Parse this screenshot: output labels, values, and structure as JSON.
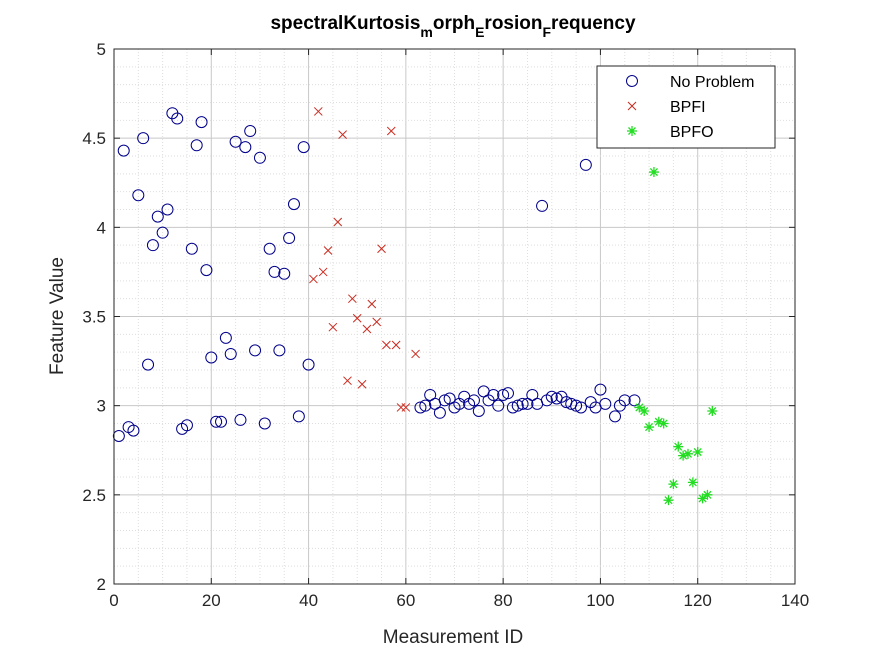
{
  "chart_data": {
    "type": "scatter",
    "title": {
      "main1": "spectralKurtosis",
      "sub1": "m",
      "main2": "orph",
      "sub2": "E",
      "main3": "rosion",
      "sub3": "F",
      "main4": "requency"
    },
    "xlabel": "Measurement ID",
    "ylabel": "Feature Value",
    "xlim": [
      0,
      140
    ],
    "ylim": [
      2,
      5
    ],
    "xticks": [
      0,
      20,
      40,
      60,
      80,
      100,
      120,
      140
    ],
    "yticks": [
      2,
      2.5,
      3,
      3.5,
      4,
      4.5,
      5
    ],
    "xtick_labels": [
      "0",
      "20",
      "40",
      "60",
      "80",
      "100",
      "120",
      "140"
    ],
    "ytick_labels": [
      "2",
      "2.5",
      "3",
      "3.5",
      "4",
      "4.5",
      "5"
    ],
    "grid": "minor dotted",
    "legend_position": "top-right",
    "series": [
      {
        "name": "No Problem",
        "marker": "circle",
        "color": "#00008b",
        "points": [
          [
            1,
            2.83
          ],
          [
            2,
            4.43
          ],
          [
            3,
            2.88
          ],
          [
            4,
            2.86
          ],
          [
            5,
            4.18
          ],
          [
            6,
            4.5
          ],
          [
            7,
            3.23
          ],
          [
            8,
            3.9
          ],
          [
            9,
            4.06
          ],
          [
            10,
            3.97
          ],
          [
            11,
            4.1
          ],
          [
            12,
            4.64
          ],
          [
            13,
            4.61
          ],
          [
            14,
            2.87
          ],
          [
            15,
            2.89
          ],
          [
            16,
            3.88
          ],
          [
            17,
            4.46
          ],
          [
            18,
            4.59
          ],
          [
            19,
            3.76
          ],
          [
            20,
            3.27
          ],
          [
            21,
            2.91
          ],
          [
            22,
            2.91
          ],
          [
            23,
            3.38
          ],
          [
            24,
            3.29
          ],
          [
            25,
            4.48
          ],
          [
            26,
            2.92
          ],
          [
            27,
            4.45
          ],
          [
            28,
            4.54
          ],
          [
            29,
            3.31
          ],
          [
            30,
            4.39
          ],
          [
            31,
            2.9
          ],
          [
            32,
            3.88
          ],
          [
            33,
            3.75
          ],
          [
            34,
            3.31
          ],
          [
            35,
            3.74
          ],
          [
            36,
            3.94
          ],
          [
            37,
            4.13
          ],
          [
            38,
            2.94
          ],
          [
            39,
            4.45
          ],
          [
            40,
            3.23
          ],
          [
            63,
            2.99
          ],
          [
            64,
            3.0
          ],
          [
            65,
            3.06
          ],
          [
            66,
            3.01
          ],
          [
            67,
            2.96
          ],
          [
            68,
            3.03
          ],
          [
            69,
            3.04
          ],
          [
            70,
            2.99
          ],
          [
            71,
            3.01
          ],
          [
            72,
            3.05
          ],
          [
            73,
            3.01
          ],
          [
            74,
            3.03
          ],
          [
            75,
            2.97
          ],
          [
            76,
            3.08
          ],
          [
            77,
            3.03
          ],
          [
            78,
            3.06
          ],
          [
            79,
            3.0
          ],
          [
            80,
            3.06
          ],
          [
            81,
            3.07
          ],
          [
            82,
            2.99
          ],
          [
            83,
            3.0
          ],
          [
            84,
            3.01
          ],
          [
            85,
            3.01
          ],
          [
            86,
            3.06
          ],
          [
            87,
            3.01
          ],
          [
            88,
            4.12
          ],
          [
            89,
            3.03
          ],
          [
            90,
            3.05
          ],
          [
            91,
            3.04
          ],
          [
            92,
            3.05
          ],
          [
            93,
            3.02
          ],
          [
            94,
            3.01
          ],
          [
            95,
            3.0
          ],
          [
            96,
            2.99
          ],
          [
            97,
            4.35
          ],
          [
            98,
            3.02
          ],
          [
            99,
            2.99
          ],
          [
            100,
            3.09
          ],
          [
            101,
            3.01
          ],
          [
            103,
            2.94
          ],
          [
            104,
            3.0
          ],
          [
            105,
            3.03
          ],
          [
            107,
            3.03
          ]
        ]
      },
      {
        "name": "BPFI",
        "marker": "x",
        "color": "#cc2a1f",
        "points": [
          [
            41,
            3.71
          ],
          [
            42,
            4.65
          ],
          [
            43,
            3.75
          ],
          [
            44,
            3.87
          ],
          [
            45,
            3.44
          ],
          [
            46,
            4.03
          ],
          [
            47,
            4.52
          ],
          [
            48,
            3.14
          ],
          [
            49,
            3.6
          ],
          [
            50,
            3.49
          ],
          [
            51,
            3.12
          ],
          [
            52,
            3.43
          ],
          [
            53,
            3.57
          ],
          [
            54,
            3.47
          ],
          [
            55,
            3.88
          ],
          [
            56,
            3.34
          ],
          [
            57,
            4.54
          ],
          [
            58,
            3.34
          ],
          [
            59,
            2.99
          ],
          [
            60,
            2.99
          ],
          [
            62,
            3.29
          ]
        ]
      },
      {
        "name": "BPFO",
        "marker": "star",
        "color": "#22dd22",
        "points": [
          [
            108,
            2.99
          ],
          [
            109,
            2.97
          ],
          [
            110,
            2.88
          ],
          [
            111,
            4.31
          ],
          [
            112,
            2.91
          ],
          [
            113,
            2.9
          ],
          [
            114,
            2.47
          ],
          [
            115,
            2.56
          ],
          [
            116,
            2.77
          ],
          [
            117,
            2.72
          ],
          [
            118,
            2.73
          ],
          [
            119,
            2.57
          ],
          [
            120,
            2.74
          ],
          [
            121,
            2.48
          ],
          [
            122,
            2.5
          ],
          [
            123,
            2.97
          ]
        ]
      }
    ]
  }
}
